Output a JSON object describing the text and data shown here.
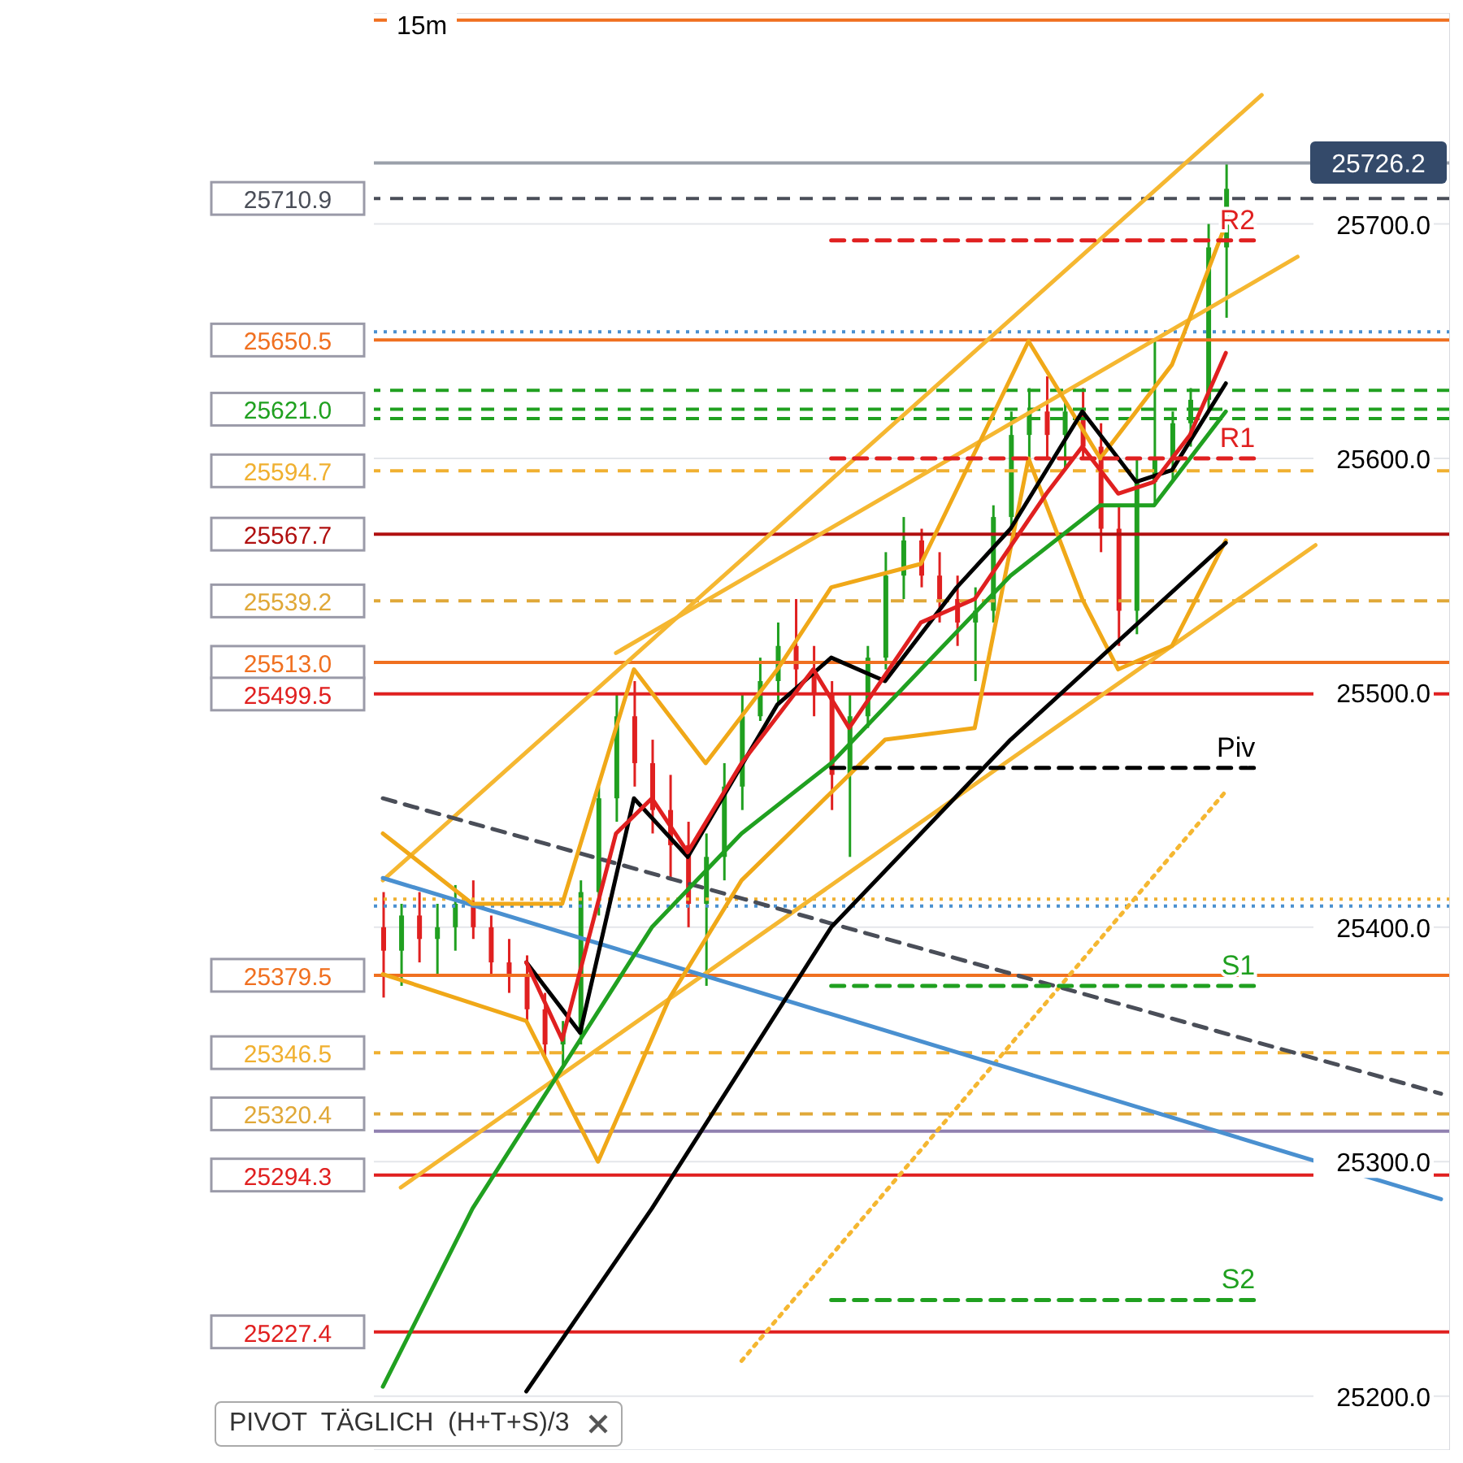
{
  "chart_data": {
    "type": "candlestick",
    "categories": [
      null,
      null,
      null,
      null,
      null,
      null,
      null,
      null,
      null,
      null,
      null,
      null,
      null,
      null,
      null,
      null,
      null,
      null,
      null,
      null,
      null,
      null,
      null,
      null,
      null,
      null,
      null,
      null,
      null,
      null,
      null,
      null,
      null,
      null,
      null,
      null,
      null,
      null,
      null,
      null,
      null,
      null,
      null,
      null,
      null,
      null,
      null,
      null,
      null,
      null,
      null,
      null,
      null,
      null,
      null,
      null,
      null,
      null,
      null,
      null
    ],
    "ohlc": [
      [
        25400,
        25415,
        25370,
        25390
      ],
      [
        25390,
        25410,
        25375,
        25405
      ],
      [
        25405,
        25415,
        25385,
        25395
      ],
      [
        25395,
        25410,
        25380,
        25400
      ],
      [
        25400,
        25418,
        25390,
        25410
      ],
      [
        25410,
        25420,
        25395,
        25400
      ],
      [
        25400,
        25405,
        25380,
        25385
      ],
      [
        25385,
        25395,
        25372,
        25380
      ],
      [
        25380,
        25388,
        25360,
        25365
      ],
      [
        25365,
        25372,
        25345,
        25350
      ],
      [
        25350,
        25360,
        25340,
        25355
      ],
      [
        25355,
        25420,
        25350,
        25415
      ],
      [
        25415,
        25460,
        25405,
        25455
      ],
      [
        25455,
        25500,
        25445,
        25490
      ],
      [
        25490,
        25505,
        25460,
        25470
      ],
      [
        25470,
        25480,
        25440,
        25450
      ],
      [
        25450,
        25465,
        25420,
        25435
      ],
      [
        25435,
        25445,
        25400,
        25410
      ],
      [
        25410,
        25440,
        25375,
        25430
      ],
      [
        25430,
        25470,
        25420,
        25460
      ],
      [
        25460,
        25500,
        25450,
        25490
      ],
      [
        25490,
        25515,
        25488,
        25505
      ],
      [
        25505,
        25530,
        25495,
        25520
      ],
      [
        25520,
        25540,
        25500,
        25510
      ],
      [
        25510,
        25520,
        25490,
        25500
      ],
      [
        25500,
        25505,
        25450,
        25465
      ],
      [
        25465,
        25500,
        25430,
        25490
      ],
      [
        25490,
        25520,
        25485,
        25515
      ],
      [
        25515,
        25560,
        25510,
        25550
      ],
      [
        25550,
        25575,
        25540,
        25565
      ],
      [
        25565,
        25570,
        25545,
        25550
      ],
      [
        25550,
        25560,
        25530,
        25540
      ],
      [
        25540,
        25550,
        25520,
        25530
      ],
      [
        25530,
        25545,
        25505,
        25535
      ],
      [
        25535,
        25580,
        25530,
        25575
      ],
      [
        25575,
        25620,
        25570,
        25610
      ],
      [
        25610,
        25630,
        25600,
        25620
      ],
      [
        25620,
        25635,
        25600,
        25610
      ],
      [
        25610,
        25625,
        25595,
        25620
      ],
      [
        25620,
        25630,
        25600,
        25605
      ],
      [
        25605,
        25615,
        25560,
        25570
      ],
      [
        25570,
        25580,
        25520,
        25535
      ],
      [
        25535,
        25600,
        25525,
        25590
      ],
      [
        25590,
        25650,
        25580,
        25600
      ],
      [
        25600,
        25620,
        25590,
        25615
      ],
      [
        25615,
        25630,
        25605,
        25625
      ],
      [
        25625,
        25700,
        25620,
        25690
      ],
      [
        25690,
        25726,
        25660,
        25715
      ],
      null,
      null,
      null,
      null,
      null,
      null,
      null,
      null,
      null,
      null,
      null,
      null
    ],
    "colors": [
      "#e02020",
      "#20a020",
      "#e02020",
      "#20a020",
      "#20a020",
      "#e02020",
      "#e02020",
      "#e02020",
      "#e02020",
      "#e02020",
      "#20a020",
      "#20a020",
      "#20a020",
      "#20a020",
      "#e02020",
      "#e02020",
      "#e02020",
      "#e02020",
      "#20a020",
      "#20a020",
      "#20a020",
      "#20a020",
      "#20a020",
      "#e02020",
      "#e02020",
      "#e02020",
      "#20a020",
      "#20a020",
      "#20a020",
      "#20a020",
      "#e02020",
      "#e02020",
      "#e02020",
      "#20a020",
      "#20a020",
      "#20a020",
      "#20a020",
      "#e02020",
      "#20a020",
      "#e02020",
      "#e02020",
      "#e02020",
      "#20a020",
      "#20a020",
      "#20a020",
      "#20a020",
      "#20a020",
      "#20a020",
      null,
      null,
      null,
      null,
      null,
      null,
      null,
      null,
      null,
      null,
      null,
      null
    ],
    "series": [
      {
        "type": "line",
        "color": "#f5b731",
        "line_style": "solid",
        "values": [
          25420,
          null,
          null,
          null,
          null,
          null,
          null,
          null,
          null,
          null,
          null,
          null,
          null,
          null,
          null,
          null,
          null,
          null,
          null,
          null,
          null,
          null,
          null,
          null,
          null,
          null,
          null,
          null,
          null,
          null,
          null,
          null,
          null,
          null,
          null,
          null,
          null,
          null,
          null,
          null,
          null,
          null,
          null,
          null,
          null,
          null,
          null,
          null,
          null,
          25755,
          null,
          null,
          null,
          null,
          null,
          null,
          null,
          null,
          null,
          null
        ]
      },
      {
        "type": "line",
        "color": "#f5b731",
        "line_style": "solid",
        "values": [
          null,
          null,
          null,
          null,
          null,
          null,
          null,
          null,
          null,
          null,
          null,
          null,
          null,
          25517,
          null,
          null,
          null,
          null,
          null,
          null,
          null,
          null,
          null,
          null,
          null,
          null,
          null,
          null,
          null,
          null,
          null,
          null,
          null,
          null,
          null,
          null,
          null,
          null,
          null,
          null,
          null,
          null,
          null,
          null,
          null,
          null,
          null,
          null,
          null,
          null,
          null,
          25686,
          null,
          null,
          null,
          null,
          null,
          null,
          null,
          null
        ]
      },
      {
        "type": "line",
        "color": "#f5b731",
        "line_style": "solid",
        "values": [
          null,
          25289,
          null,
          null,
          null,
          null,
          null,
          null,
          null,
          null,
          null,
          null,
          null,
          null,
          null,
          null,
          null,
          null,
          null,
          null,
          null,
          null,
          null,
          null,
          null,
          null,
          null,
          null,
          null,
          null,
          null,
          null,
          null,
          null,
          null,
          null,
          null,
          null,
          null,
          null,
          null,
          null,
          null,
          null,
          null,
          null,
          null,
          null,
          null,
          null,
          null,
          null,
          25563,
          null,
          null,
          null,
          null,
          null,
          null,
          null
        ]
      },
      {
        "type": "line",
        "color": "#f5b731",
        "line_style": "dotted",
        "values": [
          null,
          null,
          null,
          null,
          null,
          null,
          null,
          null,
          null,
          null,
          null,
          null,
          null,
          null,
          null,
          null,
          null,
          null,
          null,
          null,
          25215,
          null,
          null,
          null,
          null,
          null,
          null,
          null,
          null,
          null,
          null,
          null,
          null,
          null,
          null,
          null,
          null,
          null,
          null,
          null,
          null,
          null,
          null,
          null,
          null,
          null,
          null,
          25458,
          null,
          null,
          null,
          null,
          null,
          null,
          null,
          null,
          null,
          null,
          null,
          null
        ]
      },
      {
        "type": "line",
        "color": "#4a4e58",
        "line_style": "dashed",
        "values": [
          25455,
          null,
          null,
          null,
          null,
          null,
          null,
          null,
          null,
          null,
          null,
          null,
          null,
          null,
          null,
          null,
          null,
          null,
          null,
          null,
          null,
          null,
          null,
          null,
          null,
          null,
          null,
          null,
          null,
          null,
          null,
          null,
          null,
          null,
          null,
          null,
          null,
          null,
          null,
          null,
          null,
          null,
          null,
          null,
          null,
          null,
          null,
          null,
          null,
          null,
          null,
          null,
          null,
          null,
          null,
          null,
          null,
          null,
          null,
          25329
        ]
      },
      {
        "type": "line",
        "color": "#4a90d0",
        "line_style": "solid",
        "values": [
          25421,
          null,
          null,
          null,
          null,
          null,
          null,
          null,
          null,
          null,
          null,
          null,
          null,
          null,
          null,
          null,
          null,
          null,
          null,
          null,
          null,
          null,
          null,
          null,
          null,
          null,
          null,
          null,
          null,
          null,
          null,
          null,
          null,
          null,
          null,
          null,
          null,
          null,
          null,
          null,
          null,
          null,
          null,
          null,
          null,
          null,
          null,
          null,
          null,
          null,
          null,
          null,
          null,
          null,
          null,
          null,
          null,
          null,
          null,
          25284
        ]
      },
      {
        "type": "line",
        "color": "#f0a818",
        "line_style": "solid",
        "values": [
          25440,
          null,
          null,
          null,
          null,
          25410,
          null,
          null,
          null,
          null,
          25410,
          null,
          null,
          null,
          25510,
          null,
          null,
          null,
          25470,
          null,
          null,
          null,
          25510,
          null,
          null,
          25545,
          null,
          null,
          null,
          null,
          25555,
          null,
          null,
          null,
          null,
          null,
          25650,
          null,
          null,
          null,
          25600,
          null,
          null,
          null,
          25640,
          null,
          null,
          25700,
          null,
          null,
          null,
          null,
          null,
          null,
          null,
          null,
          null,
          null,
          null,
          null
        ]
      },
      {
        "type": "line",
        "color": "#f0a818",
        "line_style": "solid",
        "values": [
          25380,
          null,
          null,
          null,
          null,
          null,
          null,
          null,
          25360,
          null,
          null,
          null,
          25300,
          null,
          null,
          null,
          25370,
          null,
          null,
          null,
          25420,
          null,
          null,
          null,
          25450,
          null,
          null,
          null,
          25480,
          null,
          null,
          null,
          null,
          25485,
          null,
          null,
          25600,
          null,
          null,
          25540,
          null,
          25510,
          null,
          null,
          25520,
          null,
          null,
          25565,
          null,
          null,
          null,
          null,
          null,
          null,
          null,
          null,
          null,
          null,
          null,
          null
        ]
      },
      {
        "type": "line",
        "color": "#20a020",
        "line_style": "solid",
        "values": [
          25204,
          null,
          null,
          null,
          null,
          25280,
          null,
          null,
          null,
          null,
          25340,
          null,
          null,
          null,
          null,
          25400,
          null,
          null,
          null,
          null,
          25440,
          null,
          null,
          null,
          null,
          25470,
          null,
          null,
          null,
          null,
          25510,
          null,
          null,
          null,
          null,
          25550,
          null,
          null,
          null,
          null,
          25580,
          null,
          null,
          25580,
          null,
          null,
          null,
          25620,
          null,
          null,
          null,
          null,
          null,
          null,
          null,
          null,
          null,
          null,
          null,
          null
        ]
      },
      {
        "type": "line",
        "color": "#000000",
        "line_style": "solid",
        "values": [
          null,
          null,
          null,
          null,
          null,
          null,
          null,
          null,
          25202,
          null,
          null,
          null,
          null,
          null,
          null,
          25280,
          null,
          null,
          null,
          null,
          null,
          null,
          null,
          null,
          null,
          25400,
          null,
          null,
          null,
          null,
          null,
          null,
          null,
          null,
          null,
          25480,
          null,
          null,
          null,
          null,
          null,
          null,
          null,
          null,
          null,
          null,
          null,
          25564,
          null,
          null,
          null,
          null,
          null,
          null,
          null,
          null,
          null,
          null,
          null,
          null
        ]
      },
      {
        "type": "line",
        "color": "#000000",
        "line_style": "solid",
        "values": [
          null,
          null,
          null,
          null,
          null,
          null,
          null,
          null,
          25385,
          null,
          null,
          25355,
          null,
          null,
          25455,
          null,
          null,
          25430,
          null,
          null,
          null,
          null,
          25495,
          null,
          null,
          25515,
          null,
          null,
          25505,
          null,
          null,
          null,
          25545,
          null,
          null,
          25570,
          null,
          null,
          null,
          25620,
          null,
          null,
          25590,
          null,
          25595,
          null,
          null,
          25632,
          null,
          null,
          null,
          null,
          null,
          null,
          null,
          null,
          null,
          null,
          null,
          null
        ]
      },
      {
        "type": "line",
        "color": "#e02020",
        "line_style": "solid",
        "values": [
          null,
          null,
          null,
          null,
          null,
          null,
          null,
          null,
          25385,
          null,
          25352,
          null,
          null,
          25440,
          null,
          25455,
          null,
          25432,
          null,
          null,
          25470,
          null,
          null,
          null,
          25510,
          null,
          25485,
          null,
          null,
          null,
          25530,
          null,
          null,
          25540,
          null,
          null,
          null,
          25585,
          null,
          25605,
          null,
          25585,
          null,
          25590,
          null,
          25610,
          null,
          25645,
          null,
          null,
          null,
          null,
          null,
          null,
          null,
          null,
          null,
          null,
          null,
          null
        ]
      },
      {
        "type": "line",
        "name": "R2",
        "color": "#e02020",
        "line_style": "dashed",
        "values": [
          null,
          null,
          null,
          null,
          null,
          null,
          null,
          null,
          null,
          null,
          null,
          null,
          null,
          null,
          null,
          null,
          null,
          null,
          null,
          null,
          null,
          null,
          null,
          null,
          null,
          25693,
          null,
          null,
          null,
          null,
          null,
          null,
          null,
          null,
          null,
          null,
          null,
          null,
          null,
          null,
          null,
          null,
          null,
          null,
          null,
          null,
          null,
          null,
          null,
          25693,
          null,
          null,
          null,
          null,
          null,
          null,
          null,
          null,
          null,
          null
        ]
      },
      {
        "type": "line",
        "name": "R1",
        "color": "#e02020",
        "line_style": "dashed",
        "values": [
          null,
          null,
          null,
          null,
          null,
          null,
          null,
          null,
          null,
          null,
          null,
          null,
          null,
          null,
          null,
          null,
          null,
          null,
          null,
          null,
          null,
          null,
          null,
          null,
          null,
          25600,
          null,
          null,
          null,
          null,
          null,
          null,
          null,
          null,
          null,
          null,
          null,
          null,
          null,
          null,
          null,
          null,
          null,
          null,
          null,
          null,
          null,
          null,
          null,
          25600,
          null,
          null,
          null,
          null,
          null,
          null,
          null,
          null,
          null,
          null
        ]
      },
      {
        "type": "line",
        "name": "Piv",
        "color": "#000000",
        "line_style": "dashed",
        "values": [
          null,
          null,
          null,
          null,
          null,
          null,
          null,
          null,
          null,
          null,
          null,
          null,
          null,
          null,
          null,
          null,
          null,
          null,
          null,
          null,
          null,
          null,
          null,
          null,
          null,
          25468,
          null,
          null,
          null,
          null,
          null,
          null,
          null,
          null,
          null,
          null,
          null,
          null,
          null,
          null,
          null,
          null,
          null,
          null,
          null,
          null,
          null,
          null,
          null,
          25468,
          null,
          null,
          null,
          null,
          null,
          null,
          null,
          null,
          null,
          null
        ]
      },
      {
        "type": "line",
        "name": "S1",
        "color": "#20a020",
        "line_style": "dashed",
        "values": [
          null,
          null,
          null,
          null,
          null,
          null,
          null,
          null,
          null,
          null,
          null,
          null,
          null,
          null,
          null,
          null,
          null,
          null,
          null,
          null,
          null,
          null,
          null,
          null,
          null,
          25375,
          null,
          null,
          null,
          null,
          null,
          null,
          null,
          null,
          null,
          null,
          null,
          null,
          null,
          null,
          null,
          null,
          null,
          null,
          null,
          null,
          null,
          null,
          null,
          25375,
          null,
          null,
          null,
          null,
          null,
          null,
          null,
          null,
          null,
          null
        ]
      },
      {
        "type": "line",
        "name": "S2",
        "color": "#20a020",
        "line_style": "dashed",
        "values": [
          null,
          null,
          null,
          null,
          null,
          null,
          null,
          null,
          null,
          null,
          null,
          null,
          null,
          null,
          null,
          null,
          null,
          null,
          null,
          null,
          null,
          null,
          null,
          null,
          null,
          25241,
          null,
          null,
          null,
          null,
          null,
          null,
          null,
          null,
          null,
          null,
          null,
          null,
          null,
          null,
          null,
          null,
          null,
          null,
          null,
          null,
          null,
          null,
          null,
          25241,
          null,
          null,
          null,
          null,
          null,
          null,
          null,
          null,
          null,
          null
        ]
      }
    ],
    "ylim": [
      25177,
      25790
    ],
    "yticks": [
      {
        "value": 25200,
        "label": "25200.0"
      },
      {
        "value": 25300,
        "label": "25300.0"
      },
      {
        "value": 25400,
        "label": "25400.0"
      },
      {
        "value": 25500,
        "label": "25500.0"
      },
      {
        "value": 25600,
        "label": "25600.0"
      },
      {
        "value": 25700,
        "label": "25700.0"
      }
    ],
    "tick_labels": "y",
    "grid": "y",
    "ref_lines": [
      {
        "axis": "y",
        "value": 25787,
        "color": "#f07020",
        "line_style": "solid"
      },
      {
        "axis": "y",
        "value": 25726,
        "color": "#9aa0aa",
        "line_style": "solid"
      },
      {
        "axis": "y",
        "value": 25710.9,
        "label": "25710.9",
        "color": "#4a4e58",
        "line_style": "dashed"
      },
      {
        "axis": "y",
        "value": 25654,
        "color": "#4a90d0",
        "line_style": "dotted"
      },
      {
        "axis": "y",
        "value": 25650.5,
        "label": "25650.5",
        "color": "#f07020",
        "line_style": "solid"
      },
      {
        "axis": "y",
        "value": 25629,
        "color": "#20a020",
        "line_style": "dashed"
      },
      {
        "axis": "y",
        "value": 25621.0,
        "label": "25621.0",
        "color": "#20a020",
        "line_style": "dashed"
      },
      {
        "axis": "y",
        "value": 25617,
        "color": "#20a020",
        "line_style": "dashed"
      },
      {
        "axis": "y",
        "value": 25594.7,
        "label": "25594.7",
        "color": "#f0b030",
        "line_style": "dashed"
      },
      {
        "axis": "y",
        "value": 25567.7,
        "label": "25567.7",
        "color": "#b01010",
        "line_style": "solid"
      },
      {
        "axis": "y",
        "value": 25539.2,
        "label": "25539.2",
        "color": "#e0a838",
        "line_style": "dashed"
      },
      {
        "axis": "y",
        "value": 25513.0,
        "label": "25513.0",
        "color": "#f07020",
        "line_style": "solid"
      },
      {
        "axis": "y",
        "value": 25499.5,
        "label": "25499.5",
        "color": "#e02020",
        "line_style": "solid"
      },
      {
        "axis": "y",
        "value": 25412,
        "color": "#f0b030",
        "line_style": "dotted"
      },
      {
        "axis": "y",
        "value": 25409,
        "color": "#4a90d0",
        "line_style": "dotted"
      },
      {
        "axis": "y",
        "value": 25379.5,
        "label": "25379.5",
        "color": "#f07020",
        "line_style": "solid"
      },
      {
        "axis": "y",
        "value": 25346.5,
        "label": "25346.5",
        "color": "#f0b030",
        "line_style": "dashed"
      },
      {
        "axis": "y",
        "value": 25320.4,
        "label": "25320.4",
        "color": "#e0a838",
        "line_style": "dashed"
      },
      {
        "axis": "y",
        "value": 25313,
        "color": "#9080b0",
        "line_style": "solid"
      },
      {
        "axis": "y",
        "value": 25294.3,
        "label": "25294.3",
        "color": "#e02020",
        "line_style": "solid"
      },
      {
        "axis": "y",
        "value": 25227.4,
        "label": "25227.4",
        "color": "#e02020",
        "line_style": "solid"
      }
    ],
    "annotations": [
      "15m",
      "PIVOT  TÄGLICH  (H+T+S)/3",
      {
        "text": "25726.2",
        "y": 25726.2
      }
    ]
  }
}
